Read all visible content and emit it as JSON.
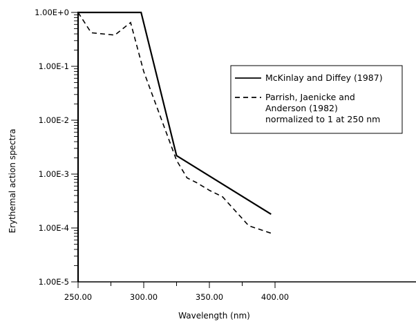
{
  "chart_data": {
    "type": "line",
    "xlabel": "Wavelength (nm)",
    "ylabel": "Erythemal  action  spectra",
    "xlim": [
      250,
      400
    ],
    "ylim": [
      1e-05,
      1
    ],
    "y_scale": "log",
    "grid": false,
    "legend_position": "right",
    "x_ticks": [
      "250.00",
      "300.00",
      "350.00",
      "400.00"
    ],
    "x_tick_values": [
      250,
      300,
      350,
      400
    ],
    "y_ticks": [
      "1.00E+0",
      "1.00E-1",
      "1.00E-2",
      "1.00E-3",
      "1.00E-4",
      "1.00E-5"
    ],
    "y_tick_values": [
      1,
      0.1,
      0.01,
      0.001,
      0.0001,
      1e-05
    ],
    "series": [
      {
        "name": "McKinlay and Diffey (1987)",
        "style": "solid",
        "x": [
          250,
          250,
          298,
          325,
          397
        ],
        "y": [
          1e-05,
          1,
          1,
          0.0022,
          0.00018
        ]
      },
      {
        "name": "Parrish, Jaenicke and Anderson (1982) normalized to 1 at 250 nm",
        "legend_lines": [
          "Parrish, Jaenicke and",
          "Anderson (1982)",
          "normalized to 1 at 250 nm"
        ],
        "style": "dashed",
        "x": [
          250,
          260,
          278,
          290,
          300,
          325,
          333,
          340,
          350,
          360,
          380,
          397
        ],
        "y": [
          1,
          0.42,
          0.38,
          0.65,
          0.08,
          0.0018,
          0.00085,
          0.0007,
          0.0005,
          0.00038,
          0.00011,
          8e-05
        ]
      }
    ]
  }
}
